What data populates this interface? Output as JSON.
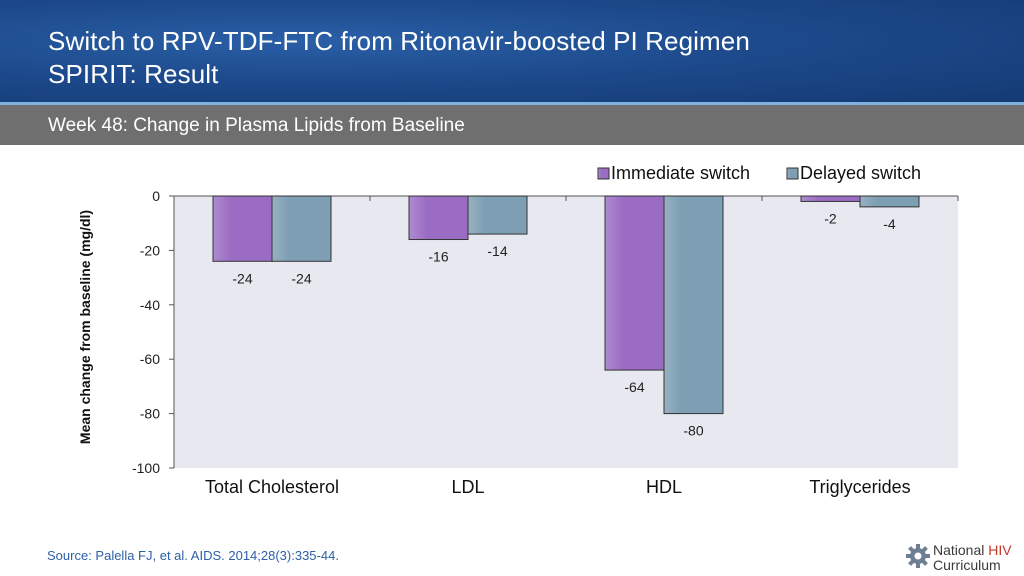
{
  "header": {
    "title_line1": "Switch to RPV-TDF-FTC from Ritonavir-boosted PI Regimen",
    "title_line2": "SPIRIT: Result"
  },
  "subtitle": "Week 48: Change in Plasma Lipids from Baseline",
  "chart_data": {
    "type": "bar",
    "categories": [
      "Total Cholesterol",
      "LDL",
      "HDL",
      "Triglycerides"
    ],
    "series": [
      {
        "name": "Immediate switch",
        "values": [
          -24,
          -16,
          -64,
          -2
        ],
        "color": "#9b6cc4"
      },
      {
        "name": "Delayed switch",
        "values": [
          -24,
          -14,
          -80,
          -4
        ],
        "color": "#7d9eb3"
      }
    ],
    "ylabel": "Mean change from baseline (mg/dl)",
    "ylim": [
      -100,
      0
    ],
    "yticks": [
      0,
      -20,
      -40,
      -60,
      -80,
      -100
    ],
    "legend": "top-right",
    "plot_background": "#e7e8f0",
    "data_labels": true
  },
  "source": "Source: Palella FJ, et al. AIDS. 2014;28(3):335-44.",
  "logo": {
    "line1_a": "National ",
    "line1_b": "HIV",
    "line2": "Curriculum",
    "icon": "gear-icon"
  }
}
